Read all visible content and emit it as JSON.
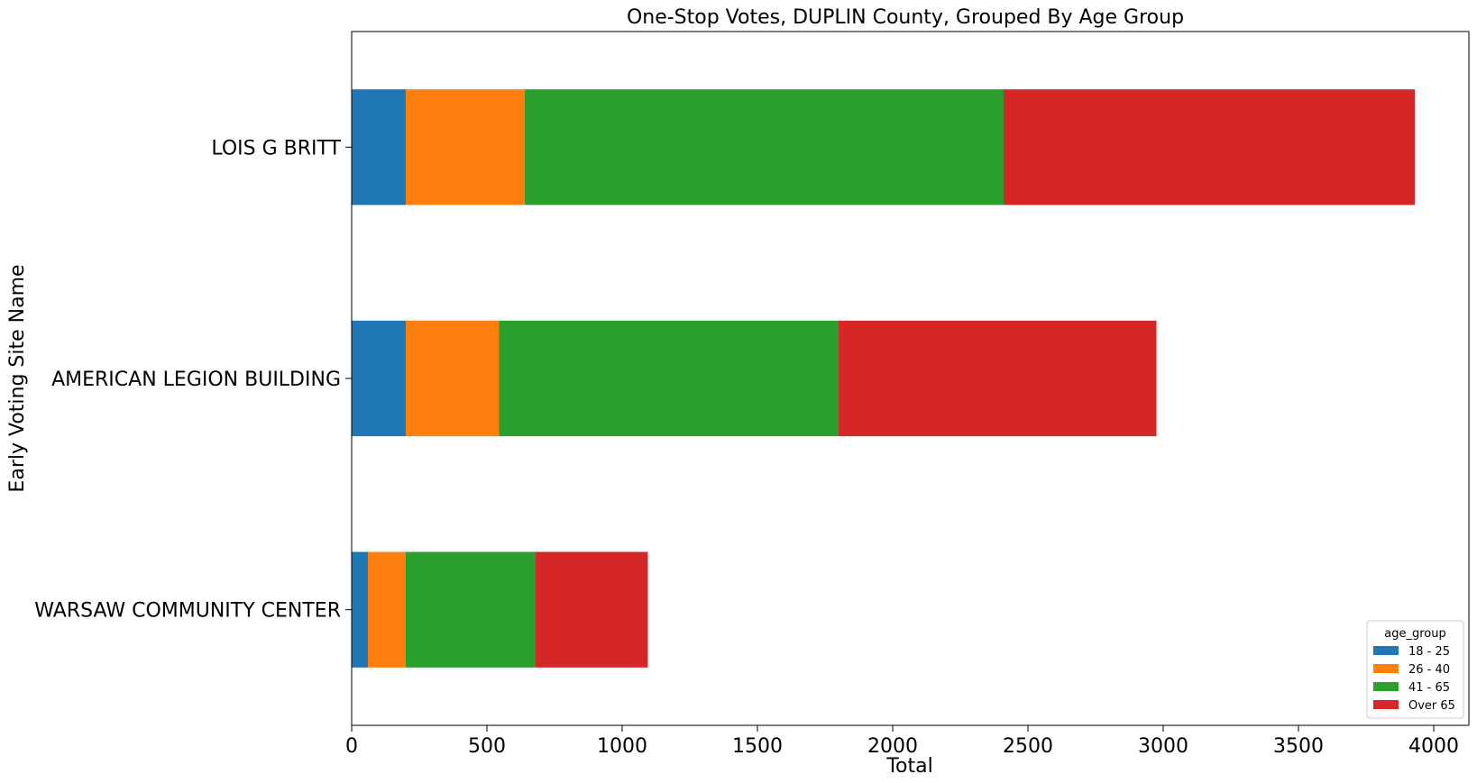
{
  "chart_data": {
    "type": "bar",
    "orientation": "horizontal",
    "stacked": true,
    "title": "One-Stop Votes, DUPLIN County, Grouped By Age Group",
    "xlabel": "Total",
    "ylabel": "Early Voting Site Name",
    "xlim": [
      0,
      4130
    ],
    "xticks": [
      0,
      500,
      1000,
      1500,
      2000,
      2500,
      3000,
      3500,
      4000
    ],
    "categories": [
      "LOIS G BRITT",
      "AMERICAN LEGION BUILDING",
      "WARSAW COMMUNITY CENTER"
    ],
    "series": [
      {
        "name": "18 - 25",
        "color": "#1f77b4",
        "values": [
          200,
          200,
          60
        ]
      },
      {
        "name": "26 - 40",
        "color": "#ff7f0e",
        "values": [
          440,
          345,
          140
        ]
      },
      {
        "name": "41 - 65",
        "color": "#2ca02c",
        "values": [
          1770,
          1255,
          480
        ]
      },
      {
        "name": "Over 65",
        "color": "#d62728",
        "values": [
          1520,
          1175,
          415
        ]
      }
    ],
    "legend": {
      "title": "age_group",
      "position": "lower-right"
    },
    "grid": false
  }
}
